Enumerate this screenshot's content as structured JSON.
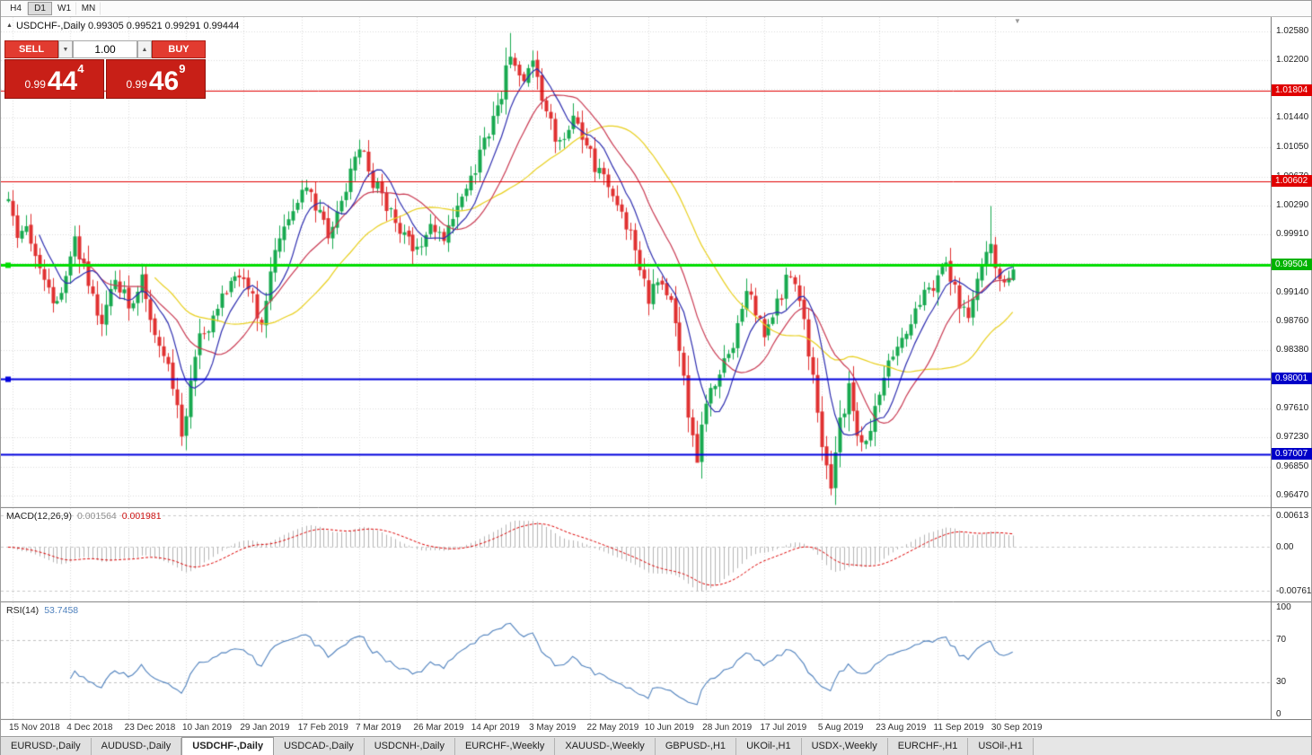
{
  "toolbar": {
    "timeframes": [
      "H4",
      "D1",
      "W1",
      "MN"
    ],
    "active": "D1"
  },
  "chart": {
    "info_line": "USDCHF-,Daily 0.99305 0.99521 0.99291 0.99444"
  },
  "icons": {
    "panel_collapse": "▲",
    "spinner_up": "▲",
    "spinner_down": "▼",
    "shift_marker": "▼"
  },
  "trade_panel": {
    "sell_label": "SELL",
    "buy_label": "BUY",
    "volume": "1.00",
    "sell_price_prefix": "0.99",
    "sell_price_big": "44",
    "sell_price_sup": "4",
    "buy_price_prefix": "0.99",
    "buy_price_big": "46",
    "buy_price_sup": "9"
  },
  "tabs": {
    "items": [
      "EURUSD-,Daily",
      "AUDUSD-,Daily",
      "USDCHF-,Daily",
      "USDCAD-,Daily",
      "USDCNH-,Daily",
      "EURCHF-,Weekly",
      "XAUUSD-,Weekly",
      "GBPUSD-,H1",
      "UKOil-,H1",
      "USDX-,Weekly",
      "EURCHF-,H1",
      "USOil-,H1"
    ],
    "active_index": 2
  },
  "chart_data": {
    "type": "candlestick",
    "symbol": "USDCHF-",
    "timeframe": "Daily",
    "bar_count": 227,
    "price_top": 1.0277,
    "price_bottom": 0.963,
    "last_bar": {
      "open": 0.99305,
      "high": 0.99521,
      "low": 0.99291,
      "close": 0.99444
    },
    "anchor_closes": [
      [
        0,
        1.004
      ],
      [
        2,
        0.9975
      ],
      [
        4,
        1.0
      ],
      [
        8,
        0.993
      ],
      [
        11,
        0.9895
      ],
      [
        14,
        0.996
      ],
      [
        15,
        0.9985
      ],
      [
        18,
        0.992
      ],
      [
        21,
        0.988
      ],
      [
        24,
        0.9935
      ],
      [
        27,
        0.9895
      ],
      [
        30,
        0.9935
      ],
      [
        33,
        0.986
      ],
      [
        36,
        0.983
      ],
      [
        38,
        0.976
      ],
      [
        39,
        0.972
      ],
      [
        41,
        0.98
      ],
      [
        43,
        0.985
      ],
      [
        46,
        0.988
      ],
      [
        49,
        0.992
      ],
      [
        53,
        0.9935
      ],
      [
        57,
        0.9875
      ],
      [
        60,
        0.9975
      ],
      [
        63,
        1.001
      ],
      [
        66,
        1.0055
      ],
      [
        69,
        1.003
      ],
      [
        72,
        0.999
      ],
      [
        75,
        1.004
      ],
      [
        78,
        1.009
      ],
      [
        80,
        1.0105
      ],
      [
        82,
        1.006
      ],
      [
        85,
        1.003
      ],
      [
        88,
        0.999
      ],
      [
        92,
        0.997
      ],
      [
        95,
        1.0
      ],
      [
        98,
        0.9985
      ],
      [
        101,
        1.003
      ],
      [
        105,
        1.008
      ],
      [
        108,
        1.013
      ],
      [
        111,
        1.018
      ],
      [
        113,
        1.0225
      ],
      [
        116,
        1.019
      ],
      [
        118,
        1.021
      ],
      [
        121,
        1.015
      ],
      [
        124,
        1.0105
      ],
      [
        127,
        1.014
      ],
      [
        131,
        1.0095
      ],
      [
        134,
        1.006
      ],
      [
        137,
        1.004
      ],
      [
        140,
        0.999
      ],
      [
        144,
        0.9905
      ],
      [
        147,
        0.9935
      ],
      [
        150,
        0.988
      ],
      [
        153,
        0.976
      ],
      [
        155,
        0.97
      ],
      [
        157,
        0.977
      ],
      [
        160,
        0.98
      ],
      [
        163,
        0.985
      ],
      [
        166,
        0.992
      ],
      [
        168,
        0.989
      ],
      [
        170,
        0.9855
      ],
      [
        173,
        0.99
      ],
      [
        176,
        0.994
      ],
      [
        179,
        0.988
      ],
      [
        181,
        0.98
      ],
      [
        183,
        0.972
      ],
      [
        185,
        0.9665
      ],
      [
        187,
        0.974
      ],
      [
        189,
        0.979
      ],
      [
        191,
        0.9725
      ],
      [
        193,
        0.9715
      ],
      [
        196,
        0.979
      ],
      [
        199,
        0.984
      ],
      [
        202,
        0.987
      ],
      [
        205,
        0.99
      ],
      [
        209,
        0.9935
      ],
      [
        211,
        0.996
      ],
      [
        214,
        0.9895
      ],
      [
        216,
        0.988
      ],
      [
        219,
        0.995
      ],
      [
        221,
        0.9985
      ],
      [
        222,
        0.995
      ],
      [
        224,
        0.993
      ],
      [
        226,
        0.99444
      ]
    ],
    "wick_overrides": {
      "39": {
        "low": 0.9712
      },
      "113": {
        "high": 1.0256
      },
      "155": {
        "low": 0.9693
      },
      "185": {
        "low": 0.9647
      },
      "221": {
        "high": 1.0028
      }
    },
    "moving_averages": [
      {
        "name": "ma-slow",
        "period": 34,
        "color": "#e8cf1e"
      },
      {
        "name": "ma-mid",
        "period": 17,
        "color": "#c93a52"
      },
      {
        "name": "ma-fast",
        "period": 8,
        "color": "#2d2daf"
      }
    ],
    "hlines": [
      {
        "value": 1.01804,
        "label": "1.01804",
        "color": "#e00000",
        "badge": "#e00000",
        "width": 1,
        "handle": false
      },
      {
        "value": 1.00602,
        "label": "1.00602",
        "color": "#e00000",
        "badge": "#e00000",
        "width": 1,
        "handle": false
      },
      {
        "value": 0.99504,
        "label": "0.99504",
        "color": "#00dd00",
        "badge": "#00b300",
        "width": 3,
        "handle": true
      },
      {
        "value": 0.98001,
        "label": "0.98001",
        "color": "#0000dd",
        "badge": "#0000c8",
        "width": 2,
        "handle": true
      },
      {
        "value": 0.97007,
        "label": "0.97007",
        "color": "#0000dd",
        "badge": "#0000c8",
        "width": 2,
        "handle": false
      }
    ],
    "grid_prices": [
      1.0258,
      1.022,
      1.0182,
      1.0144,
      1.0105,
      1.0067,
      1.0029,
      0.9991,
      0.9953,
      0.9914,
      0.9876,
      0.9838,
      0.98,
      0.9761,
      0.9723,
      0.9685,
      0.9647
    ],
    "axis_labels": [
      "1.02580",
      "1.02200",
      "1.01440",
      "1.01050",
      "1.00670",
      "1.00290",
      "0.99910",
      "0.99140",
      "0.98760",
      "0.98380",
      "0.97610",
      "0.97230",
      "0.96850",
      "0.96470"
    ],
    "date_labels": [
      {
        "bar": 1,
        "text": "15 Nov 2018"
      },
      {
        "bar": 14,
        "text": "4 Dec 2018"
      },
      {
        "bar": 27,
        "text": "23 Dec 2018"
      },
      {
        "bar": 40,
        "text": "10 Jan 2019"
      },
      {
        "bar": 53,
        "text": "29 Jan 2019"
      },
      {
        "bar": 66,
        "text": "17 Feb 2019"
      },
      {
        "bar": 79,
        "text": "7 Mar 2019"
      },
      {
        "bar": 92,
        "text": "26 Mar 2019"
      },
      {
        "bar": 105,
        "text": "14 Apr 2019"
      },
      {
        "bar": 118,
        "text": "3 May 2019"
      },
      {
        "bar": 131,
        "text": "22 May 2019"
      },
      {
        "bar": 144,
        "text": "10 Jun 2019"
      },
      {
        "bar": 157,
        "text": "28 Jun 2019"
      },
      {
        "bar": 170,
        "text": "17 Jul 2019"
      },
      {
        "bar": 183,
        "text": "5 Aug 2019"
      },
      {
        "bar": 196,
        "text": "23 Aug 2019"
      },
      {
        "bar": 209,
        "text": "11 Sep 2019"
      },
      {
        "bar": 222,
        "text": "30 Sep 2019"
      }
    ],
    "macd": {
      "label": "MACD(12,26,9)",
      "value1": "0.001564",
      "value2": "0.001981",
      "fast": 12,
      "slow": 26,
      "signal": 9,
      "axis_top": "0.00613",
      "axis_zero": "0.00",
      "axis_bottom": "-0.00761"
    },
    "rsi": {
      "label": "RSI(14)",
      "value": "53.7458",
      "period": 14,
      "levels": [
        100,
        70,
        30,
        0
      ],
      "dashed_levels": [
        70,
        30
      ],
      "color": "#4f81bd"
    },
    "colors": {
      "up": "#17a94f",
      "down": "#e03030",
      "grid": "#d9d9d9",
      "macd_hist": "#b4b4b4",
      "macd_signal": "#dd0000"
    }
  }
}
